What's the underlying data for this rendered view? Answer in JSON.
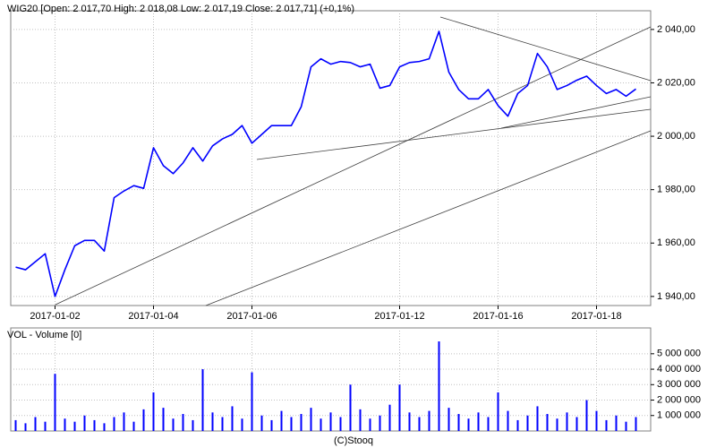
{
  "chart_data": [
    {
      "type": "line",
      "title": "WIG20 [Open: 2 017,70  High: 2 018,08  Low: 2 017,19  Close: 2 017,71] (+0,1%)",
      "x": [
        -0.8,
        -0.6,
        -0.4,
        -0.2,
        0.0,
        0.2,
        0.4,
        0.6,
        0.8,
        1.0,
        1.2,
        1.4,
        1.6,
        1.8,
        2.0,
        2.2,
        2.4,
        2.6,
        2.8,
        3.0,
        3.2,
        3.4,
        3.6,
        3.8,
        4.0,
        4.2,
        4.4,
        4.6,
        4.8,
        5.0,
        5.2,
        5.4,
        5.6,
        5.8,
        6.0,
        6.2,
        6.4,
        6.6,
        6.8,
        7.0,
        7.2,
        7.4,
        7.6,
        7.8,
        8.0,
        8.2,
        8.4,
        8.6,
        8.8,
        9.0,
        9.2,
        9.4,
        9.6,
        9.8,
        10.0,
        10.2,
        10.4,
        10.6,
        10.8,
        11.0,
        11.2,
        11.4,
        11.6,
        11.8
      ],
      "values": [
        1951,
        1950,
        1953,
        1956,
        1940,
        1950,
        1959,
        1961,
        1961,
        1957,
        1977,
        1979.5,
        1981.5,
        1980.5,
        1995.7,
        1989,
        1986,
        1990,
        1995.7,
        1990.7,
        1996.4,
        1999,
        2000.7,
        2004,
        1997.4,
        2000.7,
        2004,
        2004,
        2004,
        2011,
        2026,
        2029,
        2027,
        2028,
        2027.6,
        2026,
        2027,
        2018,
        2019,
        2026,
        2027.6,
        2028,
        2029,
        2039.3,
        2024,
        2017.5,
        2014,
        2014,
        2017.5,
        2011.5,
        2007.5,
        2016,
        2019,
        2031,
        2026,
        2017.5,
        2019,
        2021,
        2022.5,
        2019,
        2016,
        2017.5,
        2015,
        2017.7
      ],
      "color": "#0000ff",
      "xlim": [
        -0.9,
        12.1
      ],
      "xticks": [
        {
          "value": 0,
          "label": "2017-01-02"
        },
        {
          "value": 2,
          "label": "2017-01-04"
        },
        {
          "value": 4,
          "label": "2017-01-06"
        },
        {
          "value": 7,
          "label": "2017-01-12"
        },
        {
          "value": 9,
          "label": "2017-01-16"
        },
        {
          "value": 11,
          "label": "2017-01-18"
        }
      ],
      "ylim": [
        1936.6,
        2047
      ],
      "yticks": [
        {
          "value": 1940,
          "label": "1 940,00"
        },
        {
          "value": 1960,
          "label": "1 960,00"
        },
        {
          "value": 1980,
          "label": "1 980,00"
        },
        {
          "value": 2000,
          "label": "2 000,00"
        },
        {
          "value": 2020,
          "label": "2 020,00"
        },
        {
          "value": 2040,
          "label": "2 040,00"
        }
      ],
      "grid": true
    },
    {
      "type": "bar",
      "title": "VOL - Volume [0]",
      "source": "(C)Stooq",
      "x": [
        -0.8,
        -0.6,
        -0.4,
        -0.2,
        0.0,
        0.2,
        0.4,
        0.6,
        0.8,
        1.0,
        1.2,
        1.4,
        1.6,
        1.8,
        2.0,
        2.2,
        2.4,
        2.6,
        2.8,
        3.0,
        3.2,
        3.4,
        3.6,
        3.8,
        4.0,
        4.2,
        4.4,
        4.6,
        4.8,
        5.0,
        5.2,
        5.4,
        5.6,
        5.8,
        6.0,
        6.2,
        6.4,
        6.6,
        6.8,
        7.0,
        7.2,
        7.4,
        7.6,
        7.8,
        8.0,
        8.2,
        8.4,
        8.6,
        8.8,
        9.0,
        9.2,
        9.4,
        9.6,
        9.8,
        10.0,
        10.2,
        10.4,
        10.6,
        10.8,
        11.0,
        11.2,
        11.4,
        11.6,
        11.8
      ],
      "values": [
        700000,
        500000,
        900000,
        600000,
        3700000,
        800000,
        600000,
        1000000,
        700000,
        500000,
        900000,
        1200000,
        600000,
        1400000,
        2500000,
        1500000,
        800000,
        1100000,
        700000,
        4000000,
        1200000,
        900000,
        1600000,
        800000,
        3800000,
        1000000,
        700000,
        1300000,
        900000,
        1100000,
        1500000,
        800000,
        1200000,
        900000,
        3000000,
        1400000,
        800000,
        1000000,
        1700000,
        3000000,
        1200000,
        900000,
        1300000,
        5800000,
        1500000,
        1100000,
        800000,
        1200000,
        900000,
        2500000,
        1300000,
        700000,
        1000000,
        1600000,
        1100000,
        800000,
        1200000,
        900000,
        2000000,
        1300000,
        700000,
        1000000,
        600000,
        900000
      ],
      "color": "#0000ff",
      "xlim": [
        -0.9,
        12.1
      ],
      "ylim": [
        0,
        5860000
      ],
      "yticks": [
        {
          "value": 1000000,
          "label": "1 000 000"
        },
        {
          "value": 2000000,
          "label": "2 000 000"
        },
        {
          "value": 3000000,
          "label": "3 000 000"
        },
        {
          "value": 4000000,
          "label": "4 000 000"
        },
        {
          "value": 5000000,
          "label": "5 000 000"
        }
      ],
      "grid": true
    }
  ]
}
